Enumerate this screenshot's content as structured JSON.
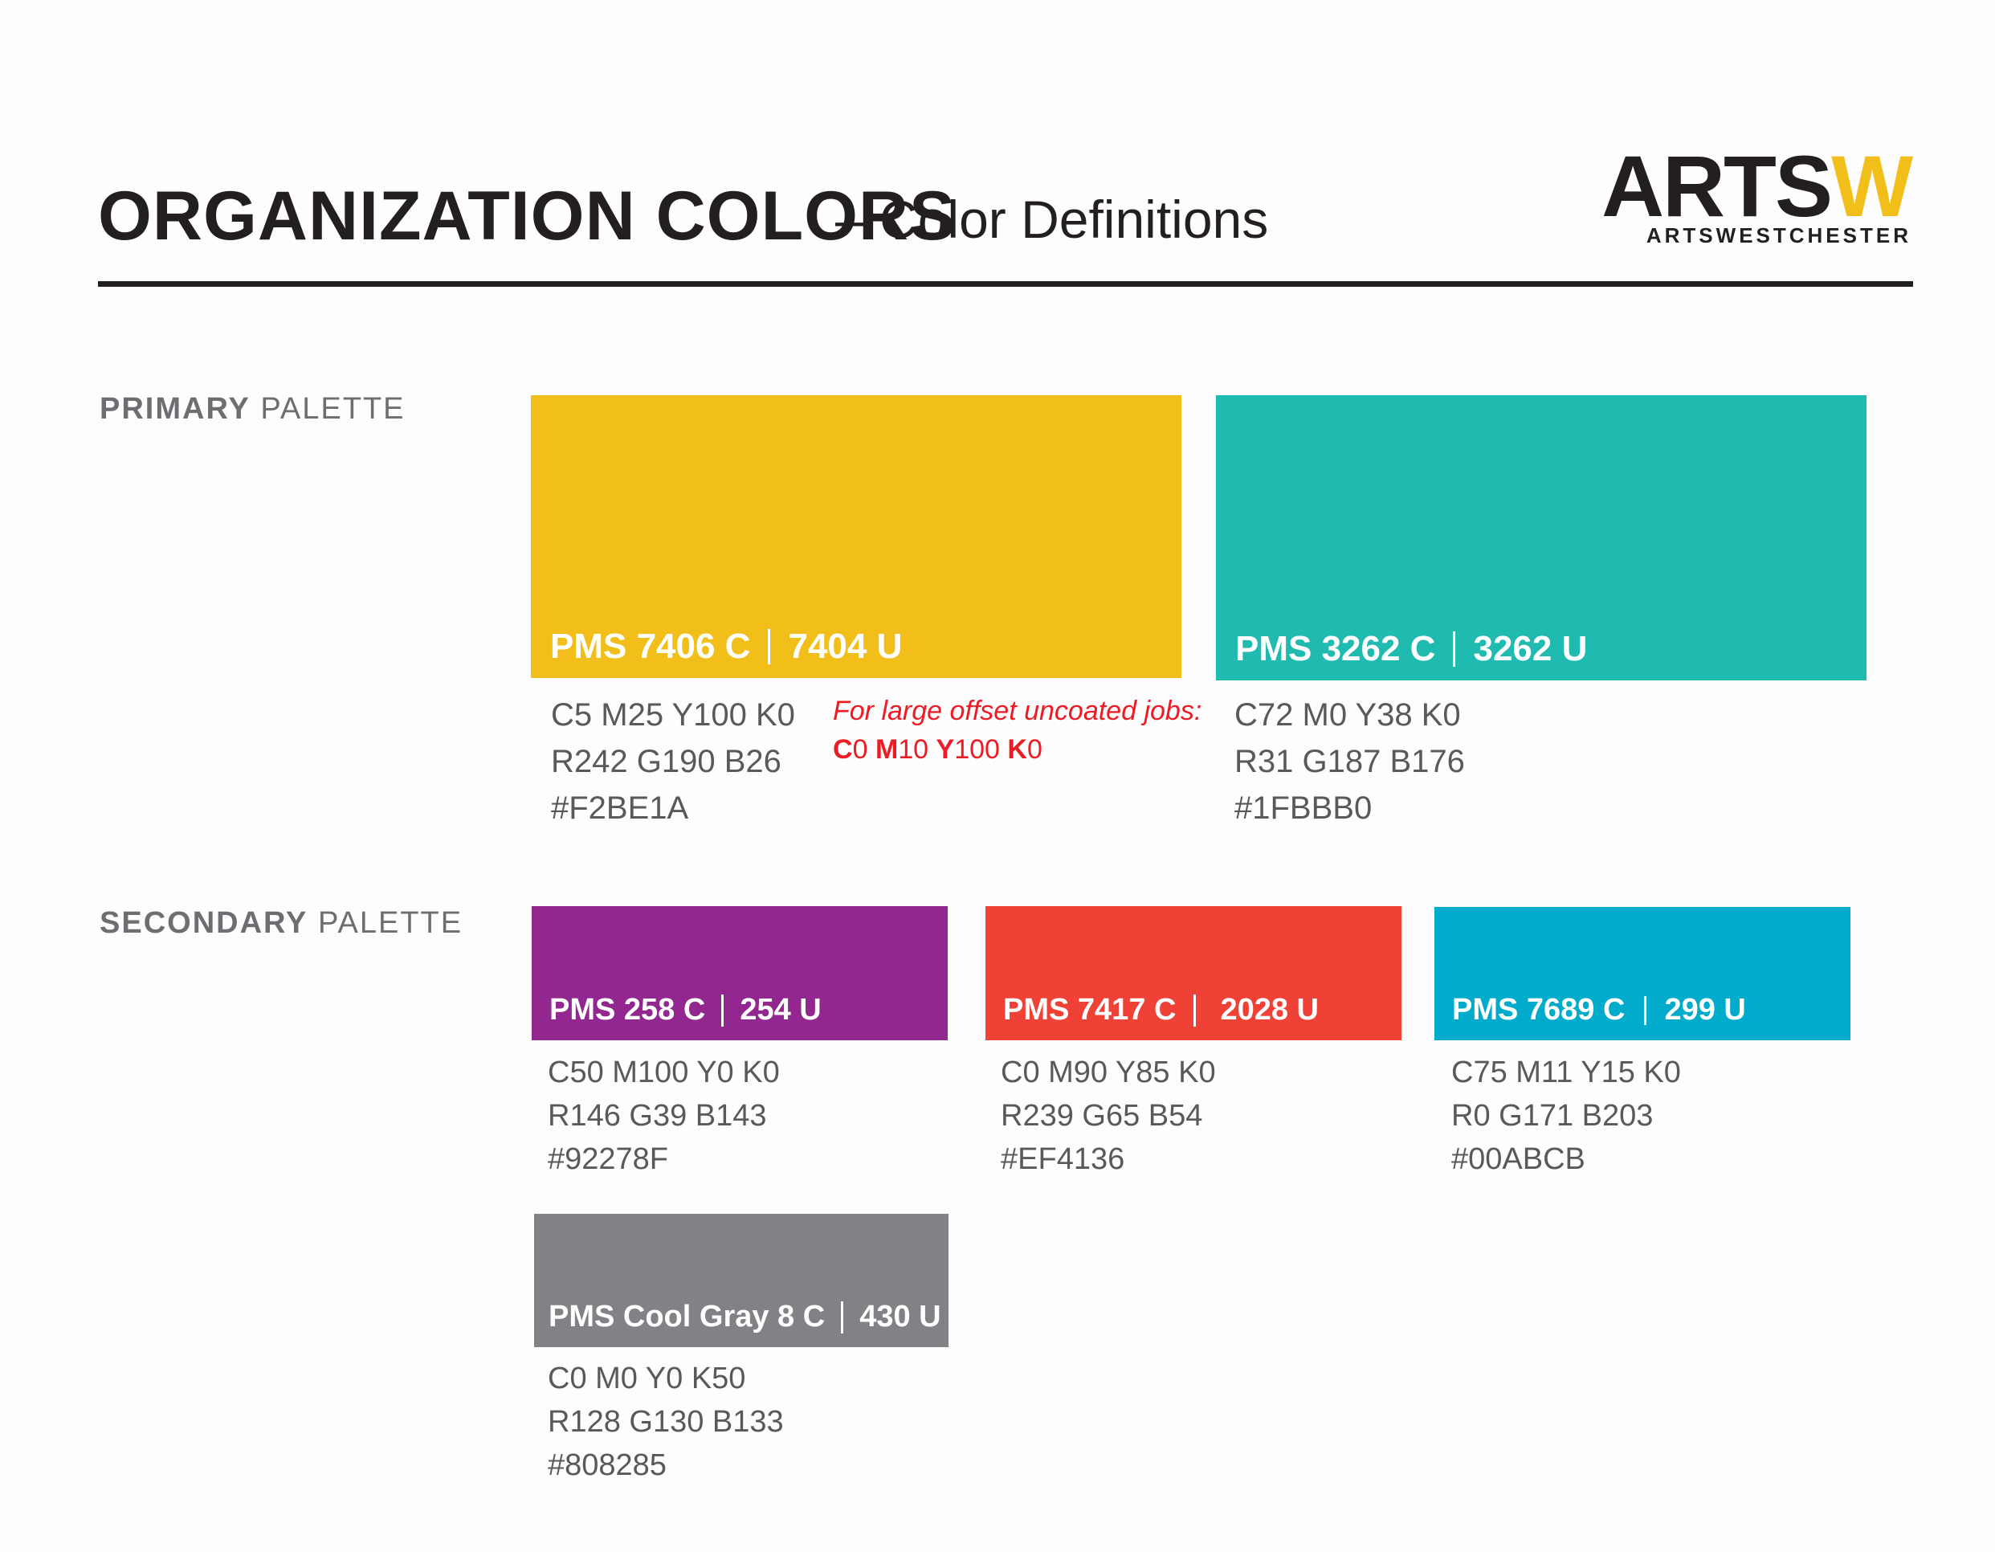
{
  "header": {
    "title": "ORGANIZATION COLORS",
    "subtitle": "– Color Definitions"
  },
  "logo": {
    "mark_dark": "ARTS",
    "mark_accent": "W",
    "wordmark": "ARTSWESTCHESTER",
    "accent_color": "#F2BE1A"
  },
  "primary": {
    "label_strong": "PRIMARY",
    "label_light": "PALETTE",
    "swatches": [
      {
        "color": "#F2BE1A",
        "pms_coated": "PMS 7406 C",
        "pms_uncoated": "7404 U",
        "cmyk": "C5  M25  Y100 K0",
        "rgb": "R242  G190  B26",
        "hex": "#F2BE1A"
      },
      {
        "color": "#1FBBB0",
        "pms_coated": "PMS 3262 C",
        "pms_uncoated": "3262 U",
        "cmyk": "C72  M0  Y38 K0",
        "rgb": "R31  G187  B176",
        "hex": "#1FBBB0"
      }
    ],
    "note": {
      "text": "For large offset uncoated jobs:",
      "values": "C0 M10 Y100 K0",
      "color": "#ED1C24"
    }
  },
  "secondary": {
    "label_strong": "SECONDARY",
    "label_light": "PALETTE",
    "swatches": [
      {
        "color": "#92278F",
        "pms_coated": "PMS 258 C",
        "pms_uncoated": "254 U",
        "cmyk": "C50  M100  Y0 K0",
        "rgb": "R146  G39  B143",
        "hex": "#92278F"
      },
      {
        "color": "#EF4136",
        "pms_coated": "PMS 7417 C",
        "pms_uncoated": "2028 U",
        "cmyk": "C0  M90  Y85 K0",
        "rgb": "R239  G65  B54",
        "hex": "#EF4136"
      },
      {
        "color": "#00ABCB",
        "pms_coated": "PMS 7689 C",
        "pms_uncoated": "299 U",
        "cmyk": "C75  M11  Y15 K0",
        "rgb": "R0  G171  B203",
        "hex": "#00ABCB"
      },
      {
        "color": "#808285",
        "pms_coated": "PMS Cool Gray 8 C",
        "pms_uncoated": "430 U",
        "cmyk": "C0  M0  Y0 K50",
        "rgb": "R128  G130  B133",
        "hex": "#808285"
      }
    ]
  }
}
